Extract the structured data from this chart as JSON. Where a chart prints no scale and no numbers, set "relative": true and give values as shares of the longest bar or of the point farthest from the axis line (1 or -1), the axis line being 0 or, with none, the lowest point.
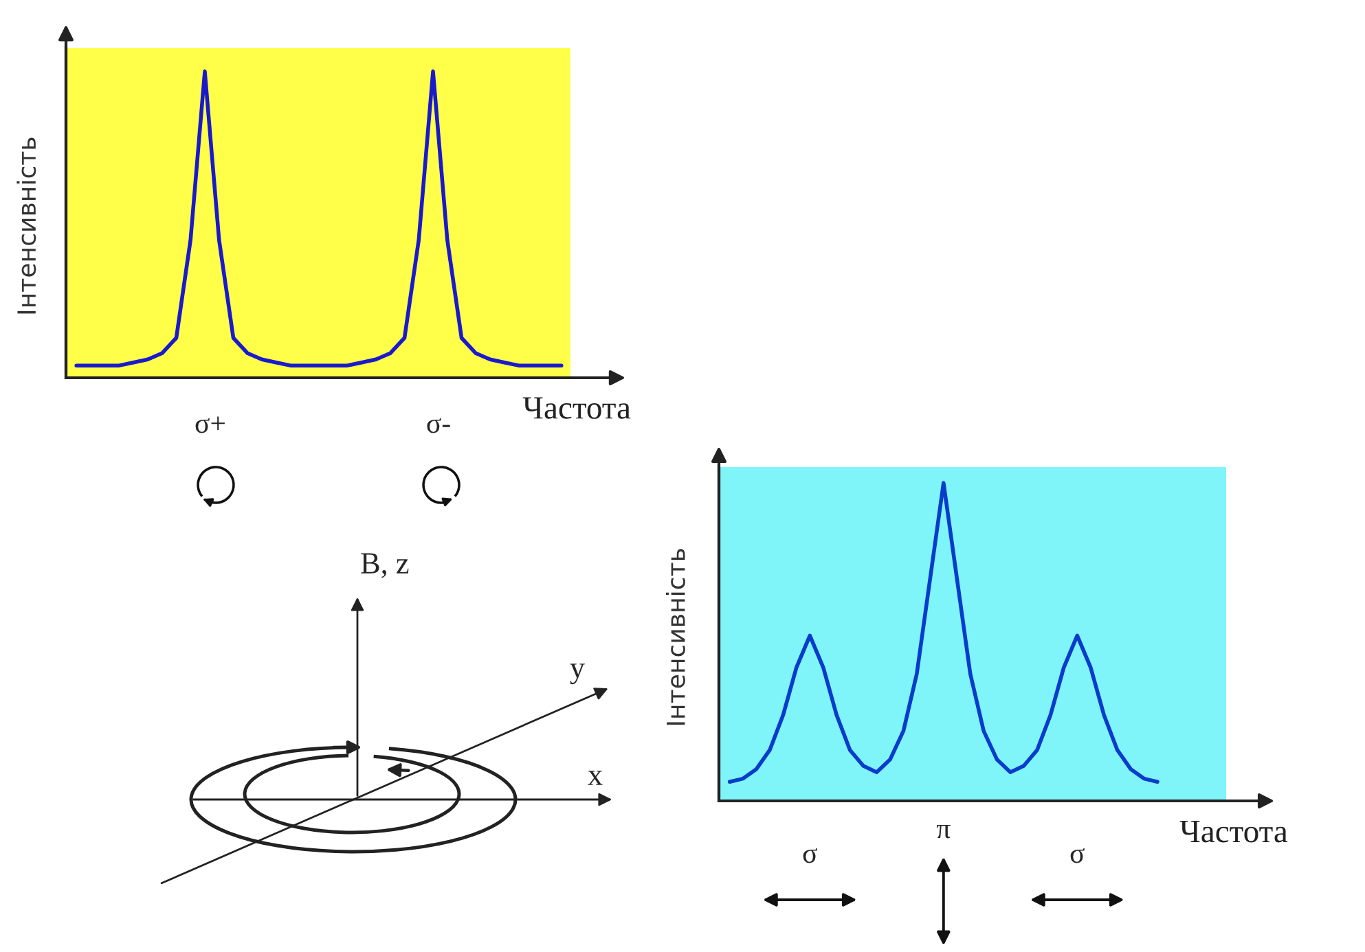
{
  "chart_data": [
    {
      "type": "line",
      "relative": true,
      "ylabel": "Інтенсивність",
      "xlabel": "Частота",
      "categories": [
        null,
        null,
        null,
        null,
        null,
        null,
        null,
        null,
        null,
        null,
        null,
        null,
        null,
        null,
        null,
        null,
        null,
        null,
        null,
        null,
        null,
        null,
        null,
        null,
        null,
        null,
        null,
        null,
        null,
        null,
        null,
        null,
        null,
        null,
        null
      ],
      "series": [
        {
          "color": "#1a1acc",
          "values": [
            0.04,
            0.04,
            0.04,
            0.04,
            0.05,
            0.06,
            0.08,
            0.13,
            0.45,
            1,
            0.45,
            0.13,
            0.08,
            0.06,
            0.05,
            0.04,
            0.04,
            0.04,
            0.04,
            0.04,
            0.05,
            0.06,
            0.08,
            0.13,
            0.45,
            1,
            0.45,
            0.13,
            0.08,
            0.06,
            0.05,
            0.04,
            0.04,
            0.04,
            0.04
          ]
        }
      ],
      "annotations": [
        "σ+",
        "σ-"
      ]
    },
    {
      "type": "line",
      "relative": true,
      "ylabel": "Інтенсивність",
      "xlabel": "Частота",
      "categories": [
        null,
        null,
        null,
        null,
        null,
        null,
        null,
        null,
        null,
        null,
        null,
        null,
        null,
        null,
        null,
        null,
        null,
        null,
        null,
        null,
        null,
        null,
        null,
        null,
        null,
        null,
        null,
        null,
        null,
        null,
        null,
        null,
        null
      ],
      "series": [
        {
          "color": "#0a3ccc",
          "values": [
            0.06,
            0.07,
            0.1,
            0.16,
            0.27,
            0.42,
            0.52,
            0.42,
            0.27,
            0.16,
            0.11,
            0.09,
            0.13,
            0.22,
            0.4,
            0.7,
            1,
            0.7,
            0.4,
            0.22,
            0.13,
            0.09,
            0.11,
            0.16,
            0.27,
            0.42,
            0.52,
            0.42,
            0.27,
            0.16,
            0.1,
            0.07,
            0.06
          ]
        }
      ],
      "annotations": [
        "σ",
        "π",
        "σ"
      ]
    },
    {
      "type": "other",
      "annotations": [
        "B, z",
        "y",
        "x"
      ]
    }
  ]
}
